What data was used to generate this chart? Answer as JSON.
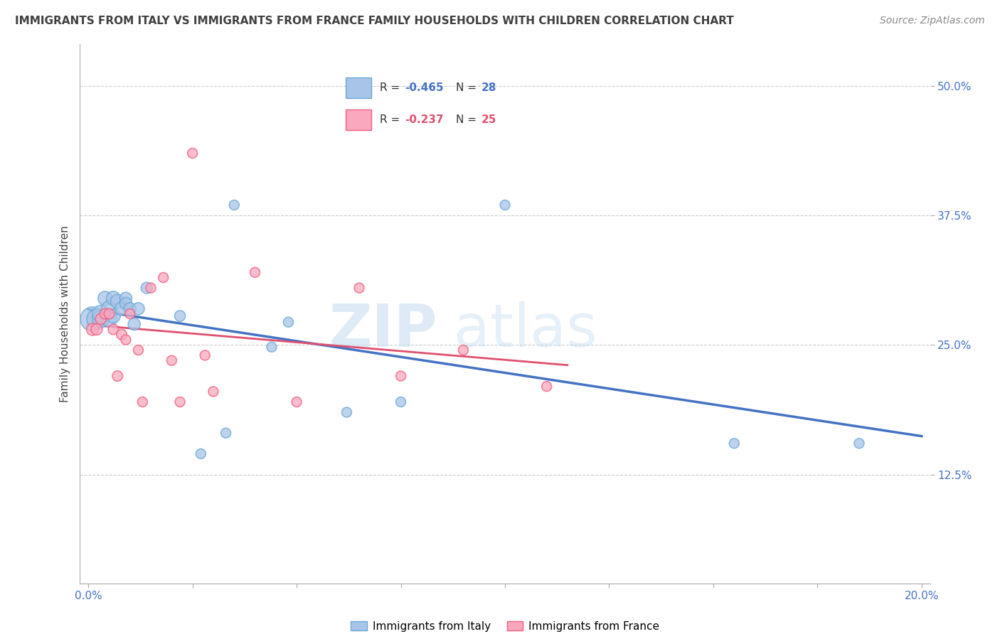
{
  "title": "IMMIGRANTS FROM ITALY VS IMMIGRANTS FROM FRANCE FAMILY HOUSEHOLDS WITH CHILDREN CORRELATION CHART",
  "source": "Source: ZipAtlas.com",
  "ylabel": "Family Households with Children",
  "xlim": [
    -0.002,
    0.202
  ],
  "ylim": [
    0.02,
    0.54
  ],
  "yticks": [
    0.125,
    0.25,
    0.375,
    0.5
  ],
  "ytick_labels": [
    "12.5%",
    "25.0%",
    "37.5%",
    "50.0%"
  ],
  "xticks": [
    0.0,
    0.025,
    0.05,
    0.075,
    0.1,
    0.125,
    0.15,
    0.175,
    0.2
  ],
  "xtick_labels": [
    "0.0%",
    "",
    "",
    "",
    "",
    "",
    "",
    "",
    "20.0%"
  ],
  "italy_R": -0.465,
  "italy_N": 28,
  "france_R": -0.237,
  "france_N": 25,
  "italy_color": "#a8c4e8",
  "france_color": "#f9a8be",
  "italy_edge_color": "#6aaad4",
  "france_edge_color": "#f06080",
  "italy_line_color": "#4472c4",
  "france_line_color": "#e05070",
  "watermark_zip_color": "#c8dff0",
  "watermark_atlas_color": "#c8dff0",
  "italy_x": [
    0.001,
    0.002,
    0.003,
    0.003,
    0.004,
    0.005,
    0.005,
    0.006,
    0.006,
    0.007,
    0.008,
    0.009,
    0.009,
    0.01,
    0.011,
    0.012,
    0.014,
    0.022,
    0.027,
    0.033,
    0.035,
    0.044,
    0.048,
    0.062,
    0.075,
    0.1,
    0.155,
    0.185
  ],
  "italy_y": [
    0.275,
    0.275,
    0.275,
    0.28,
    0.295,
    0.285,
    0.275,
    0.278,
    0.295,
    0.292,
    0.285,
    0.295,
    0.29,
    0.285,
    0.27,
    0.285,
    0.305,
    0.278,
    0.145,
    0.165,
    0.385,
    0.248,
    0.272,
    0.185,
    0.195,
    0.385,
    0.155,
    0.155
  ],
  "italy_size": [
    600,
    400,
    300,
    300,
    200,
    250,
    250,
    200,
    200,
    200,
    180,
    150,
    150,
    150,
    150,
    150,
    130,
    120,
    100,
    100,
    100,
    100,
    100,
    100,
    100,
    100,
    100,
    100
  ],
  "france_x": [
    0.001,
    0.002,
    0.003,
    0.004,
    0.005,
    0.006,
    0.007,
    0.008,
    0.009,
    0.01,
    0.012,
    0.013,
    0.015,
    0.018,
    0.02,
    0.022,
    0.025,
    0.028,
    0.03,
    0.04,
    0.05,
    0.065,
    0.075,
    0.09,
    0.11
  ],
  "france_y": [
    0.265,
    0.265,
    0.275,
    0.28,
    0.28,
    0.265,
    0.22,
    0.26,
    0.255,
    0.28,
    0.245,
    0.195,
    0.305,
    0.315,
    0.235,
    0.195,
    0.435,
    0.24,
    0.205,
    0.32,
    0.195,
    0.305,
    0.22,
    0.245,
    0.21
  ],
  "france_size": [
    150,
    130,
    120,
    110,
    110,
    110,
    110,
    110,
    100,
    100,
    100,
    100,
    100,
    100,
    100,
    100,
    100,
    100,
    100,
    100,
    100,
    100,
    100,
    100,
    100
  ]
}
